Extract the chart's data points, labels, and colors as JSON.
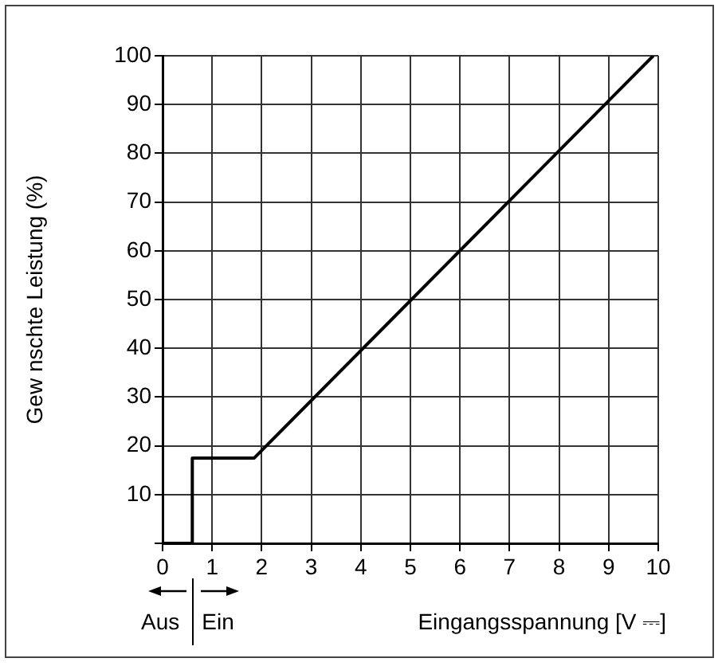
{
  "chart_data": {
    "type": "line",
    "xlabel": "Eingangsspannung [V ⎓]",
    "ylabel": "Gew nschte Leistung (%)",
    "x": [
      0,
      0.6,
      0.6,
      1.85,
      9.9
    ],
    "series": [
      {
        "color": "#000000",
        "values": [
          0,
          0,
          17.5,
          17.5,
          100
        ]
      }
    ],
    "xlim": [
      0,
      10
    ],
    "xticks": [
      0,
      1,
      2,
      3,
      4,
      5,
      6,
      7,
      8,
      9,
      10
    ],
    "ylim": [
      0,
      100
    ],
    "yticks": [
      {
        "value": 0,
        "label": null
      },
      10,
      20,
      30,
      40,
      50,
      60,
      70,
      80,
      90,
      100
    ],
    "grid": true,
    "annotations": [
      "Aus",
      "Ein"
    ]
  }
}
